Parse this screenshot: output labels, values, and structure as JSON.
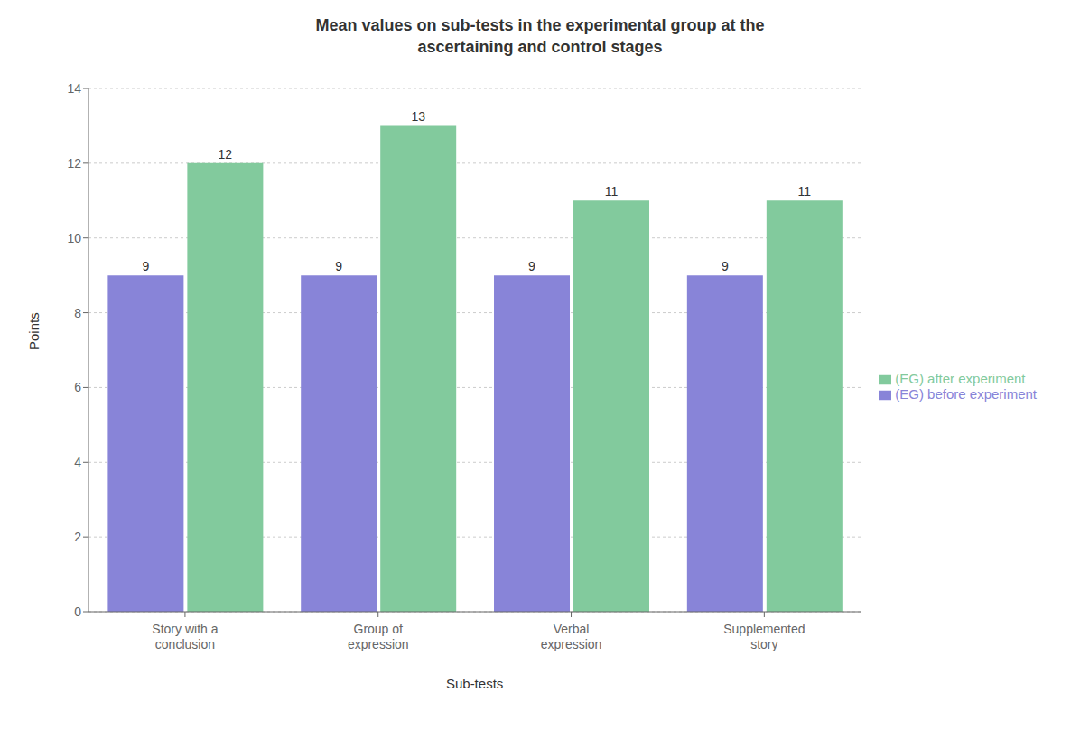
{
  "chart_data": {
    "type": "bar",
    "title": "Mean values on sub-tests in the experimental group at the\nascertaining and control stages",
    "categories": [
      "Story with a\nconclusion",
      "Group of\nexpression",
      "Verbal\nexpression",
      "Supplemented\nstory"
    ],
    "series": [
      {
        "name": "(EG) before experiment",
        "values": [
          9,
          9,
          9,
          9
        ]
      },
      {
        "name": "(EG) after experiment",
        "values": [
          12,
          13,
          11,
          11
        ]
      }
    ],
    "xlabel": "Sub-tests",
    "ylabel": "Points",
    "ylim": [
      0,
      14
    ],
    "yticks": [
      0,
      2,
      4,
      6,
      8,
      10,
      12,
      14
    ],
    "grid": true,
    "legend": "right",
    "data_labels": true
  }
}
